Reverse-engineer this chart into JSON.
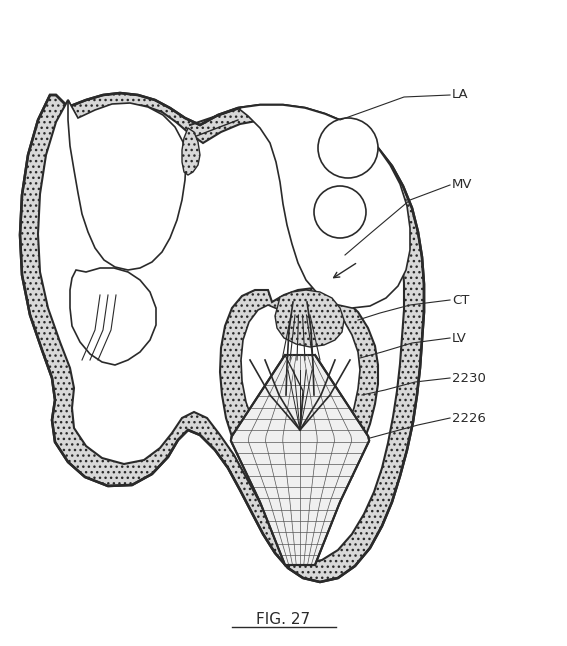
{
  "fig_caption": "FIG. 27",
  "bg": "#ffffff",
  "lc": "#2a2a2a",
  "hatch_fc": "#d8d8d8",
  "labels": [
    "LA",
    "MV",
    "CT",
    "LV",
    "2230",
    "2226"
  ],
  "fig_width": 5.67,
  "fig_height": 6.46
}
